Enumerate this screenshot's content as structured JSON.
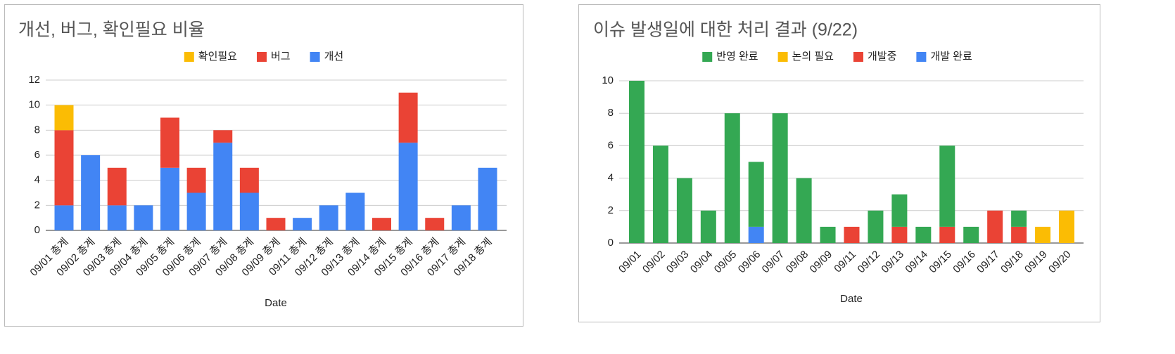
{
  "chart_data": [
    {
      "type": "bar",
      "stacked": true,
      "title": "개선, 버그, 확인필요 비율",
      "x_label": "Date",
      "categories": [
        "09/01 총계",
        "09/02 총계",
        "09/03 총계",
        "09/04 총계",
        "09/05 총계",
        "09/06 총계",
        "09/07 총계",
        "09/08 총계",
        "09/09 총계",
        "09/11 총계",
        "09/12 총계",
        "09/13 총계",
        "09/14 총계",
        "09/15 총계",
        "09/16 총계",
        "09/17 총계",
        "09/18 총계"
      ],
      "series": [
        {
          "name": "확인필요",
          "color": "#fbbc04",
          "values": [
            2,
            0,
            0,
            0,
            0,
            0,
            0,
            0,
            0,
            0,
            0,
            0,
            0,
            0,
            0,
            0,
            0
          ]
        },
        {
          "name": "버그",
          "color": "#ea4335",
          "values": [
            6,
            0,
            3,
            0,
            4,
            2,
            1,
            2,
            1,
            0,
            0,
            0,
            1,
            4,
            1,
            0,
            0
          ]
        },
        {
          "name": "개선",
          "color": "#4285f4",
          "values": [
            2,
            6,
            2,
            2,
            5,
            3,
            7,
            3,
            0,
            1,
            2,
            3,
            0,
            7,
            0,
            2,
            5
          ]
        }
      ],
      "ylim": [
        0,
        12
      ],
      "yticks": [
        0,
        2,
        4,
        6,
        8,
        10,
        12
      ],
      "grid": true,
      "legend": "top"
    },
    {
      "type": "bar",
      "stacked": true,
      "title": "이슈 발생일에 대한 처리 결과 (9/22)",
      "x_label": "Date",
      "categories": [
        "09/01",
        "09/02",
        "09/03",
        "09/04",
        "09/05",
        "09/06",
        "09/07",
        "09/08",
        "09/09",
        "09/11",
        "09/12",
        "09/13",
        "09/14",
        "09/15",
        "09/16",
        "09/17",
        "09/18",
        "09/19",
        "09/20"
      ],
      "series": [
        {
          "name": "반영 완료",
          "color": "#34a853",
          "values": [
            10,
            6,
            4,
            2,
            8,
            4,
            8,
            4,
            1,
            0,
            2,
            2,
            1,
            5,
            1,
            0,
            1,
            0,
            0
          ]
        },
        {
          "name": "논의 필요",
          "color": "#fbbc04",
          "values": [
            0,
            0,
            0,
            0,
            0,
            0,
            0,
            0,
            0,
            0,
            0,
            0,
            0,
            0,
            0,
            0,
            0,
            1,
            2
          ]
        },
        {
          "name": "개발중",
          "color": "#ea4335",
          "values": [
            0,
            0,
            0,
            0,
            0,
            0,
            0,
            0,
            0,
            1,
            0,
            1,
            0,
            1,
            0,
            2,
            1,
            0,
            0
          ]
        },
        {
          "name": "개발 완료",
          "color": "#4285f4",
          "values": [
            0,
            0,
            0,
            0,
            0,
            1,
            0,
            0,
            0,
            0,
            0,
            0,
            0,
            0,
            0,
            0,
            0,
            0,
            0
          ]
        }
      ],
      "ylim": [
        0,
        10
      ],
      "yticks": [
        0,
        2,
        4,
        6,
        8,
        10
      ],
      "grid": true,
      "legend": "top"
    }
  ]
}
